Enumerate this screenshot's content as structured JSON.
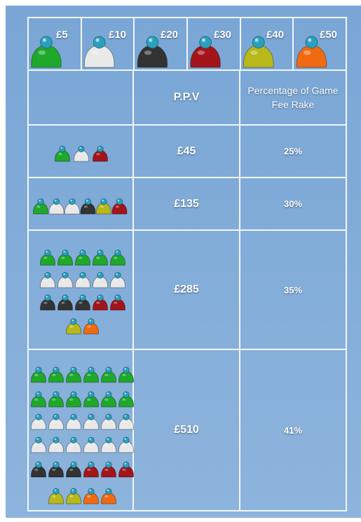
{
  "icons": [
    {
      "label": "£5"
    },
    {
      "label": "£10"
    },
    {
      "label": "£20"
    },
    {
      "label": "£30"
    },
    {
      "label": "£40"
    },
    {
      "label": "£50"
    }
  ],
  "table": {
    "header": {
      "ppv": "P.P.V",
      "rake": "Percentage of Game Fee Rake"
    },
    "rows": [
      {
        "ppv": "£45",
        "rake": "25%"
      },
      {
        "ppv": "£135",
        "rake": "30%"
      },
      {
        "ppv": "£285",
        "rake": "35%"
      },
      {
        "ppv": "£510",
        "rake": "41%"
      }
    ]
  }
}
